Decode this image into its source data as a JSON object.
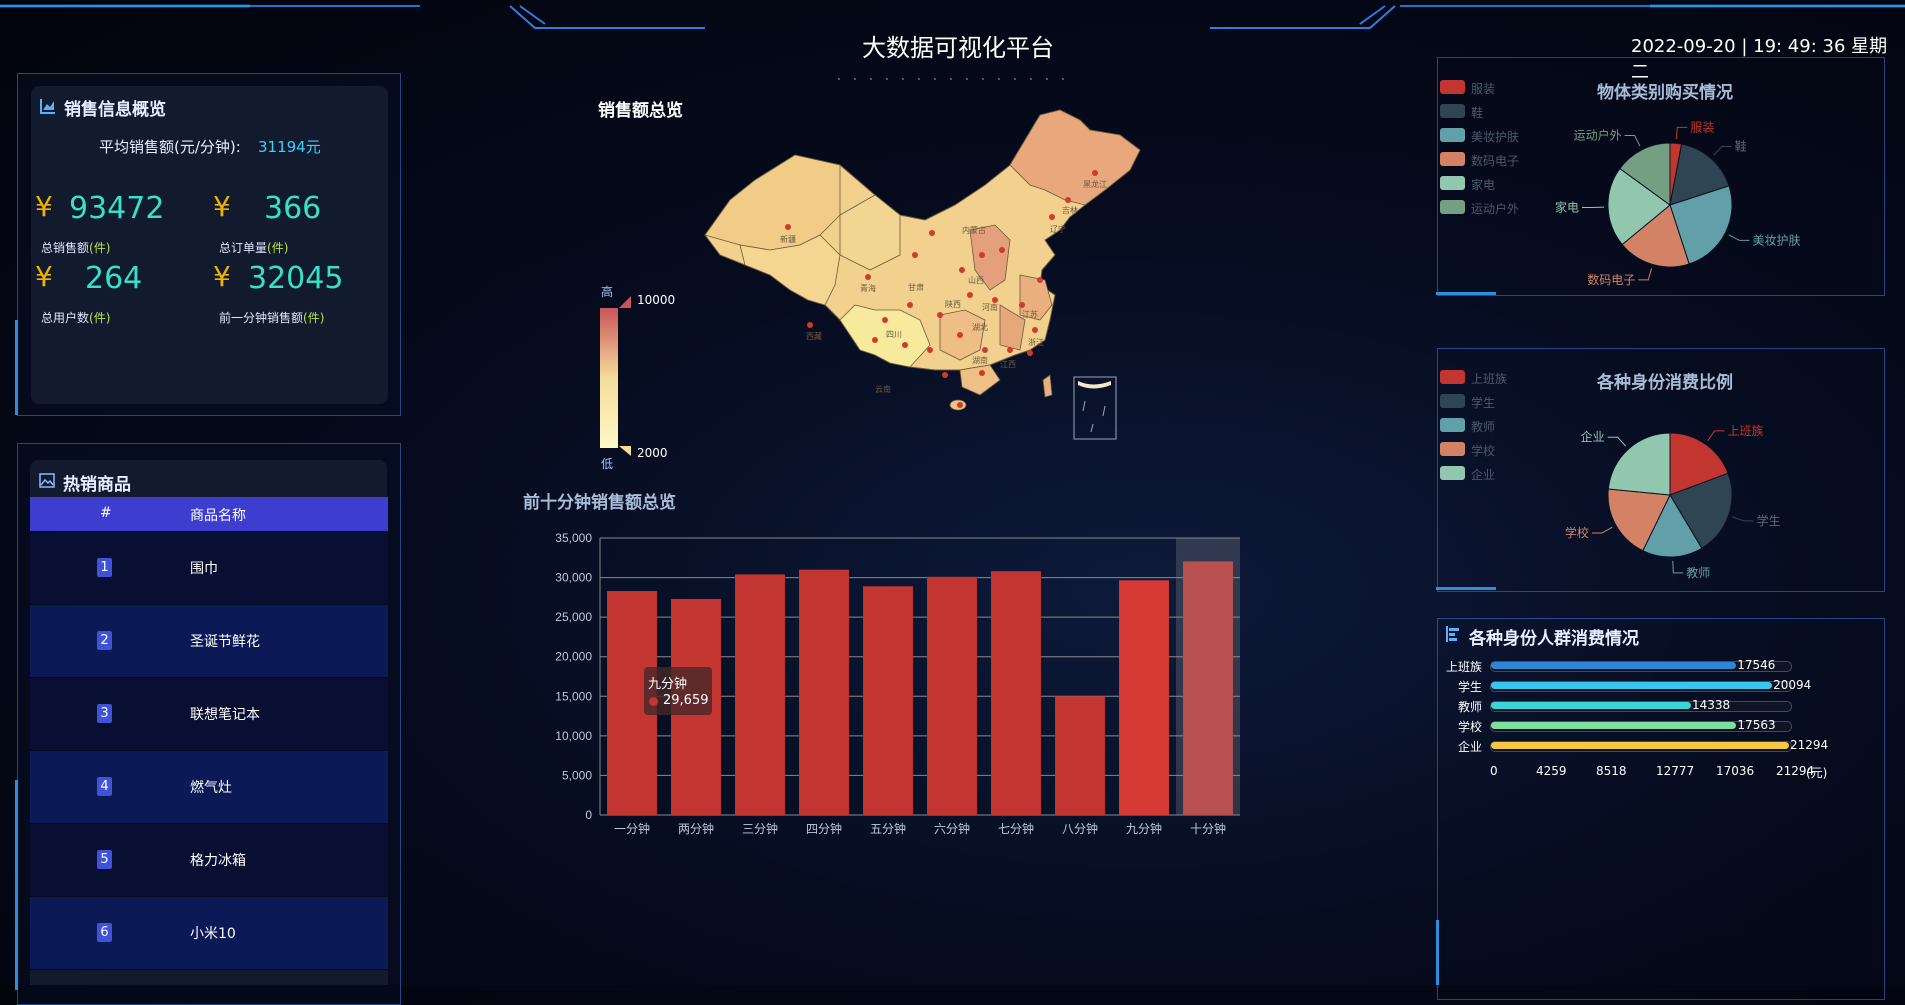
{
  "header": {
    "title": "大数据可视化平台",
    "datetime": "2022-09-20 | 19: 49: 36 星期二"
  },
  "sales_overview": {
    "title": "销售信息概览",
    "avg_label": "平均销售额(元/分钟):",
    "avg_value": "31194元",
    "currency": "¥",
    "stats": [
      {
        "value": "93472",
        "label": "总销售额",
        "unit": "(件)"
      },
      {
        "value": "366",
        "label": "总订单量",
        "unit": "(件)"
      },
      {
        "value": "264",
        "label": "总用户数",
        "unit": "(件)"
      },
      {
        "value": "32045",
        "label": "前一分钟销售额",
        "unit": "(件)"
      }
    ]
  },
  "hot_products": {
    "title": "热销商品",
    "col_index": "#",
    "col_name": "商品名称",
    "rows": [
      {
        "rank": "1",
        "name": "围巾"
      },
      {
        "rank": "2",
        "name": "圣诞节鲜花"
      },
      {
        "rank": "3",
        "name": "联想笔记本"
      },
      {
        "rank": "4",
        "name": "燃气灶"
      },
      {
        "rank": "5",
        "name": "格力冰箱"
      },
      {
        "rank": "6",
        "name": "小米10"
      }
    ]
  },
  "map": {
    "title": "销售额总览",
    "visual_high": "高",
    "visual_low": "低",
    "max_label": "10000",
    "min_label": "2000",
    "province_labels": [
      "新疆",
      "西藏",
      "青海",
      "甘肃",
      "内蒙古",
      "黑龙江",
      "吉林",
      "辽宁",
      "四川",
      "云南",
      "湖南",
      "江西",
      "山西",
      "陕西",
      "河南",
      "湖北",
      "江苏",
      "浙江"
    ]
  },
  "bar_chart_title": "前十分钟销售额总览",
  "tooltip": {
    "label": "九分钟",
    "value": "29,659"
  },
  "pie1": {
    "title": "物体类别购买情况",
    "legend": [
      "服装",
      "鞋",
      "美妆护肤",
      "数码电子",
      "家电",
      "运动户外"
    ],
    "labels": [
      "服装",
      "鞋",
      "美妆护肤",
      "数码电子",
      "家电",
      "运动户外"
    ],
    "colors": [
      "#c23531",
      "#2f4554",
      "#61a0a8",
      "#d48265",
      "#91c7ae",
      "#749f83"
    ],
    "values": [
      3,
      17,
      25,
      19,
      21,
      15
    ]
  },
  "pie2": {
    "title": "各种身份消费比例",
    "legend": [
      "上班族",
      "学生",
      "教师",
      "学校",
      "企业"
    ],
    "labels": [
      "上班族",
      "学生",
      "教师",
      "学校",
      "企业"
    ],
    "colors": [
      "#c23531",
      "#2f4554",
      "#61a0a8",
      "#d48265",
      "#91c7ae"
    ],
    "values": [
      17546,
      20094,
      14338,
      17563,
      21294
    ]
  },
  "consumption": {
    "title": "各种身份人群消费情况",
    "unit": "(元)",
    "max": 21294,
    "ticks": [
      "0",
      "4259",
      "8518",
      "12777",
      "17036",
      "21294"
    ],
    "rows": [
      {
        "label": "上班族",
        "value": "17546",
        "color": "#2e86d8"
      },
      {
        "label": "学生",
        "value": "20094",
        "color": "#38c6f0"
      },
      {
        "label": "教师",
        "value": "14338",
        "color": "#38d6d8"
      },
      {
        "label": "学校",
        "value": "17563",
        "color": "#7ee0a0"
      },
      {
        "label": "企业",
        "value": "21294",
        "color": "#f5c842"
      }
    ]
  },
  "chart_data": {
    "type": "bar",
    "categories": [
      "一分钟",
      "两分钟",
      "三分钟",
      "四分钟",
      "五分钟",
      "六分钟",
      "七分钟",
      "八分钟",
      "九分钟",
      "十分钟"
    ],
    "values": [
      28300,
      27300,
      30400,
      31000,
      28900,
      30100,
      30800,
      15000,
      29659,
      32045
    ],
    "title": "前十分钟销售额总览",
    "ylim": [
      0,
      35000
    ],
    "yticks": [
      "35,000",
      "30,000",
      "25,000",
      "20,000",
      "15,000",
      "10,000",
      "5,000",
      "0"
    ],
    "grid": true,
    "bar_color": "#c23531",
    "highlight_index": 9
  }
}
